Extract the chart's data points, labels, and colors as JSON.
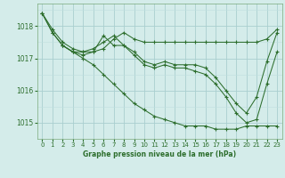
{
  "title": "Graphe pression niveau de la mer (hPa)",
  "bg_color": "#d4ecea",
  "grid_color_major": "#aacfcf",
  "grid_color_minor": "#c0dede",
  "line_color": "#2d6e2d",
  "marker_color": "#2d6e2d",
  "xlim": [
    -0.5,
    23.5
  ],
  "ylim": [
    1014.5,
    1018.7
  ],
  "yticks": [
    1015,
    1016,
    1017,
    1018
  ],
  "xticks": [
    0,
    1,
    2,
    3,
    4,
    5,
    6,
    7,
    8,
    9,
    10,
    11,
    12,
    13,
    14,
    15,
    16,
    17,
    18,
    19,
    20,
    21,
    22,
    23
  ],
  "series": [
    {
      "x": [
        0,
        1,
        2,
        3,
        4,
        5,
        6,
        7,
        8,
        9,
        10,
        11,
        12,
        13,
        14,
        15,
        16,
        17,
        18,
        19,
        20,
        21,
        22,
        23
      ],
      "y": [
        1018.4,
        1017.9,
        1017.5,
        1017.3,
        1017.2,
        1017.2,
        1017.3,
        1017.6,
        1017.8,
        1017.6,
        1017.5,
        1017.5,
        1017.5,
        1017.5,
        1017.5,
        1017.5,
        1017.5,
        1017.5,
        1017.5,
        1017.5,
        1017.5,
        1017.5,
        1017.6,
        1017.9
      ]
    },
    {
      "x": [
        0,
        1,
        2,
        3,
        4,
        5,
        6,
        7,
        8,
        9,
        10,
        11,
        12,
        13,
        14,
        15,
        16,
        17,
        18,
        19,
        20,
        21,
        22,
        23
      ],
      "y": [
        1018.4,
        1017.8,
        1017.4,
        1017.2,
        1017.2,
        1017.3,
        1017.5,
        1017.7,
        1017.4,
        1017.2,
        1016.9,
        1016.8,
        1016.9,
        1016.8,
        1016.8,
        1016.8,
        1016.7,
        1016.4,
        1016.0,
        1015.6,
        1015.3,
        1015.8,
        1016.9,
        1017.8
      ]
    },
    {
      "x": [
        0,
        1,
        2,
        3,
        4,
        5,
        6,
        7,
        8,
        9,
        10,
        11,
        12,
        13,
        14,
        15,
        16,
        17,
        18,
        19,
        20,
        21,
        22,
        23
      ],
      "y": [
        1018.4,
        1017.8,
        1017.4,
        1017.2,
        1017.1,
        1017.2,
        1017.7,
        1017.4,
        1017.4,
        1017.1,
        1016.8,
        1016.7,
        1016.8,
        1016.7,
        1016.7,
        1016.6,
        1016.5,
        1016.2,
        1015.8,
        1015.3,
        1015.0,
        1015.1,
        1016.2,
        1017.2
      ]
    },
    {
      "x": [
        2,
        3,
        4,
        5,
        6,
        7,
        8,
        9,
        10,
        11,
        12,
        13,
        14,
        15,
        16,
        17,
        18,
        19,
        20,
        21,
        22,
        23
      ],
      "y": [
        1017.4,
        1017.2,
        1017.0,
        1016.8,
        1016.5,
        1016.2,
        1015.9,
        1015.6,
        1015.4,
        1015.2,
        1015.1,
        1015.0,
        1014.9,
        1014.9,
        1014.9,
        1014.8,
        1014.8,
        1014.8,
        1014.9,
        1014.9,
        1014.9,
        1014.9
      ]
    }
  ]
}
